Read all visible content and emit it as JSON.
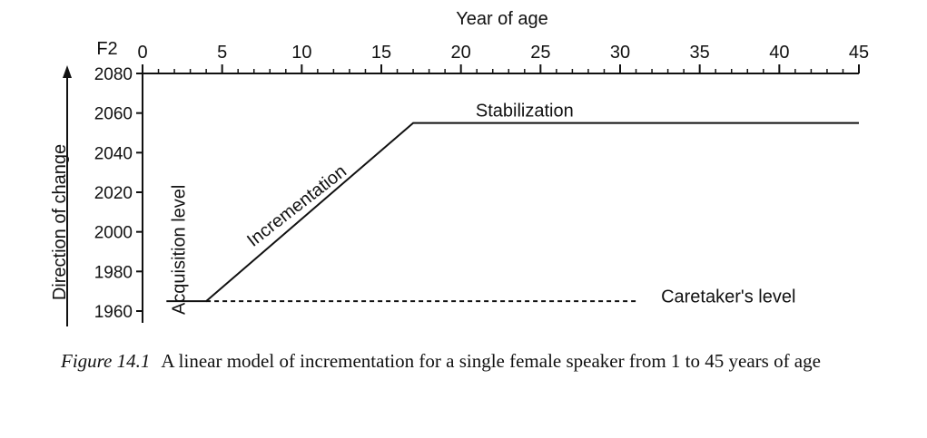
{
  "chart_data": {
    "type": "line",
    "xlabel": "Year of age",
    "ylabel": "Direction of change",
    "y_axis_tag": "F2",
    "xlim": [
      0,
      45
    ],
    "ylim": [
      1960,
      2080
    ],
    "x_ticks": [
      0,
      5,
      10,
      15,
      20,
      25,
      30,
      35,
      40,
      45
    ],
    "y_ticks": [
      1960,
      1980,
      2000,
      2020,
      2040,
      2060,
      2080
    ],
    "x_axis_position": "top",
    "grid": false,
    "series": [
      {
        "style": "solid",
        "x": [
          1.5,
          4,
          17,
          45
        ],
        "y": [
          1965,
          1965,
          2055,
          2055
        ]
      },
      {
        "style": "dashed",
        "x": [
          4,
          31
        ],
        "y": [
          1965,
          1965
        ]
      }
    ],
    "annotations": [
      {
        "text": "Acquisition level",
        "x": 2.3,
        "y": 1991,
        "rotation": -90
      },
      {
        "text": "Incrementation",
        "x": 9.7,
        "y": 2013,
        "rotation": -38
      },
      {
        "text": "Stabilization",
        "x": 24,
        "y": 2061,
        "rotation": 0
      },
      {
        "text": "Caretaker's level",
        "x": 36.8,
        "y": 1967,
        "rotation": 0
      }
    ]
  },
  "caption": {
    "label": "Figure 14.1",
    "text": "A linear model of incrementation for a single female speaker from 1 to 45 years of age"
  }
}
